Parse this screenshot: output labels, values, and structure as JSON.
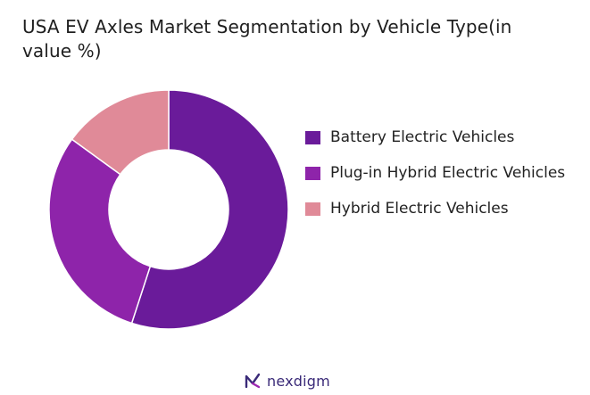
{
  "chart_data": {
    "type": "pie",
    "variant": "donut",
    "title": "USA EV Axles Market Segmentation by Vehicle Type(in value %)",
    "series": [
      {
        "name": "Battery Electric Vehicles",
        "value": 55,
        "color": "#6a1b9a"
      },
      {
        "name": "Plug-in Hybrid Electric Vehicles",
        "value": 30,
        "color": "#8e24aa"
      },
      {
        "name": "Hybrid Electric Vehicles",
        "value": 15,
        "color": "#e08a98"
      }
    ],
    "legend_position": "right",
    "start_angle": "top",
    "direction": "clockwise"
  },
  "brand": {
    "name": "nexdigm",
    "icon": "nexdigm-logo-icon",
    "color": "#3a2a78"
  }
}
